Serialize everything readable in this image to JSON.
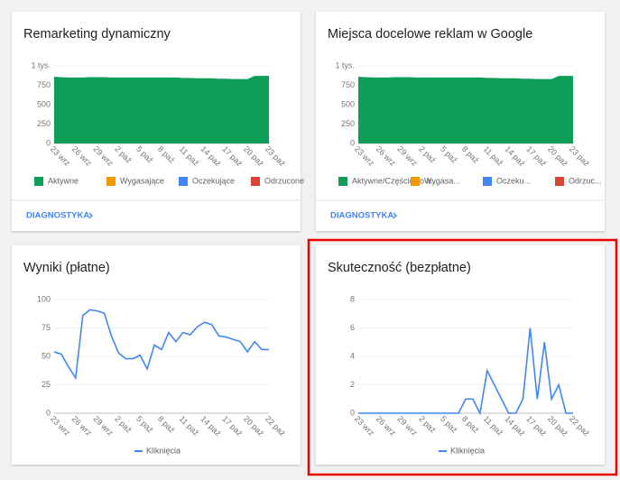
{
  "chart_data": [
    {
      "type": "area",
      "title": "Remarketing dynamiczny",
      "link": "DIAGNOSTYKA",
      "categories": [
        "23 wrz",
        null,
        null,
        "26 wrz",
        null,
        null,
        "29 wrz",
        null,
        null,
        "2 paź",
        null,
        null,
        "5 paź",
        null,
        null,
        "8 paź",
        null,
        null,
        "11 paź",
        null,
        null,
        "14 paź",
        null,
        null,
        "17 paź",
        null,
        null,
        "20 paź",
        null,
        null,
        "23 paź"
      ],
      "ylim": [
        0,
        1000
      ],
      "yticks": [
        0,
        250,
        500,
        750,
        {
          "value": 1000,
          "label": "1 tys."
        }
      ],
      "grid": true,
      "legend": "bottom",
      "series": [
        {
          "name": "Aktywne",
          "color": "#0f9d58",
          "values": [
            860,
            855,
            850,
            850,
            850,
            855,
            855,
            855,
            850,
            850,
            850,
            850,
            850,
            850,
            850,
            850,
            850,
            850,
            845,
            845,
            840,
            840,
            840,
            835,
            835,
            830,
            830,
            830,
            870,
            870,
            870
          ]
        },
        {
          "name": "Wygasające",
          "color": "#f29900",
          "values": [
            0,
            0,
            0,
            0,
            0,
            0,
            0,
            0,
            0,
            0,
            0,
            0,
            0,
            0,
            0,
            0,
            0,
            0,
            0,
            0,
            0,
            0,
            0,
            0,
            0,
            0,
            0,
            0,
            0,
            0,
            0
          ]
        },
        {
          "name": "Oczekujące",
          "color": "#4285f4",
          "values": [
            0,
            0,
            0,
            0,
            0,
            0,
            0,
            0,
            0,
            0,
            0,
            0,
            0,
            0,
            0,
            0,
            0,
            0,
            0,
            0,
            0,
            0,
            0,
            0,
            0,
            0,
            0,
            0,
            0,
            0,
            0
          ]
        },
        {
          "name": "Odrzucone",
          "color": "#db4437",
          "values": [
            0,
            0,
            0,
            0,
            0,
            0,
            0,
            0,
            0,
            0,
            0,
            0,
            0,
            0,
            0,
            0,
            0,
            0,
            0,
            0,
            0,
            0,
            0,
            0,
            0,
            0,
            0,
            0,
            0,
            0,
            0
          ]
        }
      ]
    },
    {
      "type": "area",
      "title": "Miejsca docelowe reklam w Google",
      "link": "DIAGNOSTYKA",
      "categories": [
        "23 wrz",
        null,
        null,
        "26 wrz",
        null,
        null,
        "29 wrz",
        null,
        null,
        "2 paź",
        null,
        null,
        "5 paź",
        null,
        null,
        "8 paź",
        null,
        null,
        "11 paź",
        null,
        null,
        "14 paź",
        null,
        null,
        "17 paź",
        null,
        null,
        "20 paź",
        null,
        null,
        "23 paź"
      ],
      "ylim": [
        0,
        1000
      ],
      "yticks": [
        0,
        250,
        500,
        750,
        {
          "value": 1000,
          "label": "1 tys."
        }
      ],
      "grid": true,
      "legend": "bottom",
      "series": [
        {
          "name": "Aktywne/Częściowo a...",
          "color": "#0f9d58",
          "values": [
            860,
            855,
            850,
            850,
            850,
            855,
            855,
            855,
            850,
            850,
            850,
            850,
            850,
            850,
            850,
            850,
            850,
            850,
            845,
            845,
            840,
            840,
            840,
            835,
            835,
            830,
            830,
            830,
            870,
            870,
            870
          ]
        },
        {
          "name": "Wygasa...",
          "color": "#f29900",
          "values": [
            0,
            0,
            0,
            0,
            0,
            0,
            0,
            0,
            0,
            0,
            0,
            0,
            0,
            0,
            0,
            0,
            0,
            0,
            0,
            0,
            0,
            0,
            0,
            0,
            0,
            0,
            0,
            0,
            0,
            0,
            0
          ]
        },
        {
          "name": "Oczeku...",
          "color": "#4285f4",
          "values": [
            0,
            0,
            0,
            0,
            0,
            0,
            0,
            0,
            0,
            0,
            0,
            0,
            0,
            0,
            0,
            0,
            0,
            0,
            0,
            0,
            0,
            0,
            0,
            0,
            0,
            0,
            0,
            0,
            0,
            0,
            0
          ]
        },
        {
          "name": "Odrzuc...",
          "color": "#db4437",
          "values": [
            0,
            0,
            0,
            0,
            0,
            0,
            0,
            0,
            0,
            0,
            0,
            0,
            0,
            0,
            0,
            0,
            0,
            0,
            0,
            0,
            0,
            0,
            0,
            0,
            0,
            0,
            0,
            0,
            0,
            0,
            0
          ]
        }
      ]
    },
    {
      "type": "line",
      "title": "Wyniki (płatne)",
      "categories": [
        "23 wrz",
        null,
        null,
        "26 wrz",
        null,
        null,
        "29 wrz",
        null,
        null,
        "2 paź",
        null,
        null,
        "5 paź",
        null,
        null,
        "8 paź",
        null,
        null,
        "11 paź",
        null,
        null,
        "14 paź",
        null,
        null,
        "17 paź",
        null,
        null,
        "20 paź",
        null,
        null,
        "22 paź"
      ],
      "ylim": [
        0,
        100
      ],
      "yticks": [
        0,
        25,
        50,
        75,
        100
      ],
      "grid": true,
      "legend": "bottom",
      "series": [
        {
          "name": "Kliknięcia",
          "color": "#4285f4",
          "values": [
            54,
            52,
            41,
            31,
            86,
            91,
            90,
            88,
            68,
            53,
            48,
            48,
            51,
            39,
            60,
            56,
            71,
            63,
            71,
            69,
            76,
            80,
            78,
            68,
            67,
            65,
            63,
            54,
            63,
            56,
            56
          ]
        }
      ]
    },
    {
      "type": "line",
      "title": "Skuteczność (bezpłatne)",
      "categories": [
        "23 wrz",
        null,
        null,
        "26 wrz",
        null,
        null,
        "29 wrz",
        null,
        null,
        "2 paź",
        null,
        null,
        "5 paź",
        null,
        null,
        "8 paź",
        null,
        null,
        "11 paź",
        null,
        null,
        "14 paź",
        null,
        null,
        "17 paź",
        null,
        null,
        "20 paź",
        null,
        null,
        "22 paź"
      ],
      "ylim": [
        0,
        8
      ],
      "yticks": [
        0,
        2,
        4,
        6,
        8
      ],
      "grid": true,
      "legend": "bottom",
      "series": [
        {
          "name": "Kliknięcia",
          "color": "#4285f4",
          "values": [
            0,
            0,
            0,
            0,
            0,
            0,
            0,
            0,
            0,
            0,
            0,
            0,
            0,
            0,
            0,
            1,
            1,
            0,
            3,
            2,
            1,
            0,
            0,
            1,
            6,
            1,
            5,
            1,
            2,
            0,
            0
          ]
        }
      ]
    }
  ]
}
